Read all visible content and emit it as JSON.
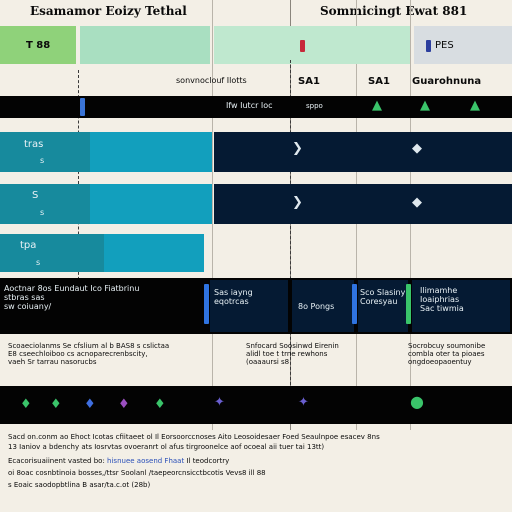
{
  "header": {
    "title_left": "Esamamor Eoizy Tethal",
    "title_right": "Sommicingt Ewat 881"
  },
  "top_row": {
    "cell1_label": "T 88",
    "cell2_label": "PES"
  },
  "subheader": {
    "label_center": "sonvnoclouf Ilotts",
    "label_a": "SA1",
    "label_b": "SA1",
    "label_c": "Guarohnuna"
  },
  "black_strip": {
    "label": "Ifw Iutcr Ioc",
    "tag": "sppo"
  },
  "rows": [
    {
      "label": "tras",
      "sub": "s"
    },
    {
      "label": "S",
      "sub": "s"
    },
    {
      "label": "tpa",
      "sub": "s"
    }
  ],
  "info_band": {
    "left_lines": [
      "Aoctnar 8os Eundaut Ico Fiatbrinu",
      "stbras sas",
      "sw coiuany/"
    ],
    "col2_lines": [
      "Sas iayng",
      "eqotrcas"
    ],
    "col3_lines": [
      "8o Pongs"
    ],
    "col4_lines": [
      "Sco Slasiny",
      "Coresyau"
    ],
    "col5_lines": [
      "Ilimamhe",
      "Ioaiphrias",
      "Sac tiwmia"
    ]
  },
  "notes": {
    "left_lines": [
      "Scoaeciolanms Se cfslium al b BAS8 s cslictaa",
      "E8 cseechloiboo cs acnoparecrenbscity,",
      "vaeh Sr tarrau nasorucbs"
    ],
    "mid_lines": [
      "Snfocard Soosinwd Eirenin",
      "alidl toe t trne rewhons",
      "(oaaaursi s8"
    ],
    "right_lines": [
      "Socrobcuy soumonibe",
      "combla oter ta pioaes",
      "ongdoeopaoentuy"
    ]
  },
  "footer": {
    "line1": "Sacd on.conm ao Ehoct Icotas cfiitaeet ol Il Eorsoorccnoses Aito Leosoidesaer Foed Seaulnpoe esacev 8ns",
    "line2": "13 Ianiov a bdenchy ats Iosrvtas ovoeranrt ol afus tirgroonelce aof ocoeal aii tuer tai 13tt)",
    "line3_a": "Ecacorisuaiinent vasted bo:",
    "line3_b": "hisnuee aosend Fhaat",
    "line3_c": "Il teodcortry",
    "line4": "oi 8oac cosnbtinoia bosses,/ttsr Soolanl /taepeorcnsicctbcotis Vevs8 ill 88",
    "line5": "s Eoaic saodopbtlina  B asar/ta.c.ot (28b)"
  }
}
